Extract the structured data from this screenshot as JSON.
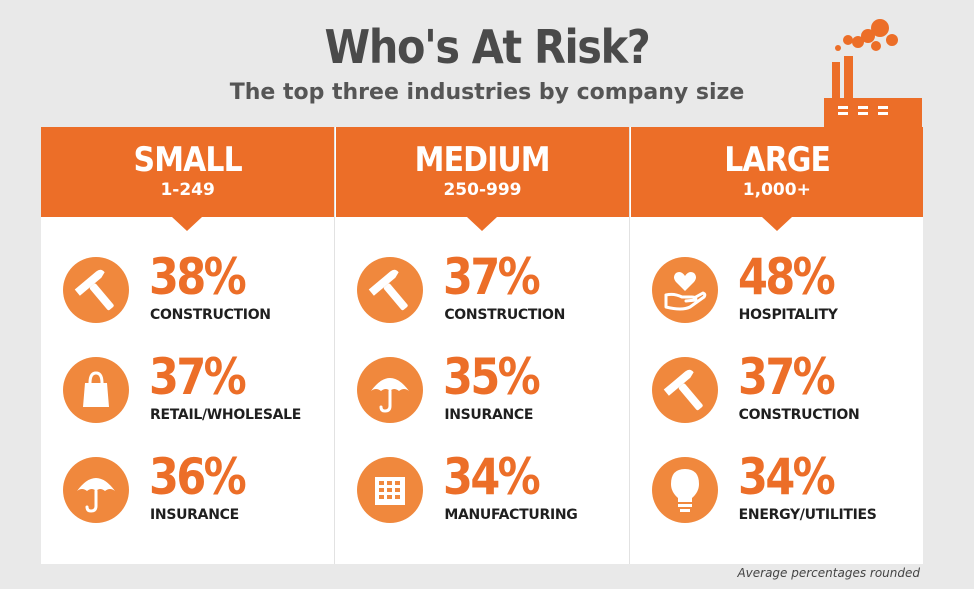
{
  "title": "Who's At Risk?",
  "subtitle": "The top three industries by company size",
  "footnote": "Average percentages rounded",
  "colors": {
    "accent": "#ec6e28",
    "icon_bg": "#f0883d",
    "background": "#e9e9e9"
  },
  "chart_data": {
    "type": "table",
    "title": "Who's At Risk?",
    "subtitle": "The top three industries by company size",
    "columns": [
      {
        "size": "SMALL",
        "range": "1-249",
        "rows": [
          {
            "value": 38,
            "label": "38%",
            "industry": "CONSTRUCTION",
            "icon": "hammer-icon"
          },
          {
            "value": 37,
            "label": "37%",
            "industry": "RETAIL/WHOLESALE",
            "icon": "shopping-bag-icon"
          },
          {
            "value": 36,
            "label": "36%",
            "industry": "INSURANCE",
            "icon": "umbrella-icon"
          }
        ]
      },
      {
        "size": "MEDIUM",
        "range": "250-999",
        "rows": [
          {
            "value": 37,
            "label": "37%",
            "industry": "CONSTRUCTION",
            "icon": "hammer-icon"
          },
          {
            "value": 35,
            "label": "35%",
            "industry": "INSURANCE",
            "icon": "umbrella-icon"
          },
          {
            "value": 34,
            "label": "34%",
            "industry": "MANUFACTURING",
            "icon": "building-icon"
          }
        ]
      },
      {
        "size": "LARGE",
        "range": "1,000+",
        "rows": [
          {
            "value": 48,
            "label": "48%",
            "industry": "HOSPITALITY",
            "icon": "heart-hand-icon"
          },
          {
            "value": 37,
            "label": "37%",
            "industry": "CONSTRUCTION",
            "icon": "hammer-icon"
          },
          {
            "value": 34,
            "label": "34%",
            "industry": "ENERGY/UTILITIES",
            "icon": "lightbulb-icon"
          }
        ]
      }
    ]
  }
}
